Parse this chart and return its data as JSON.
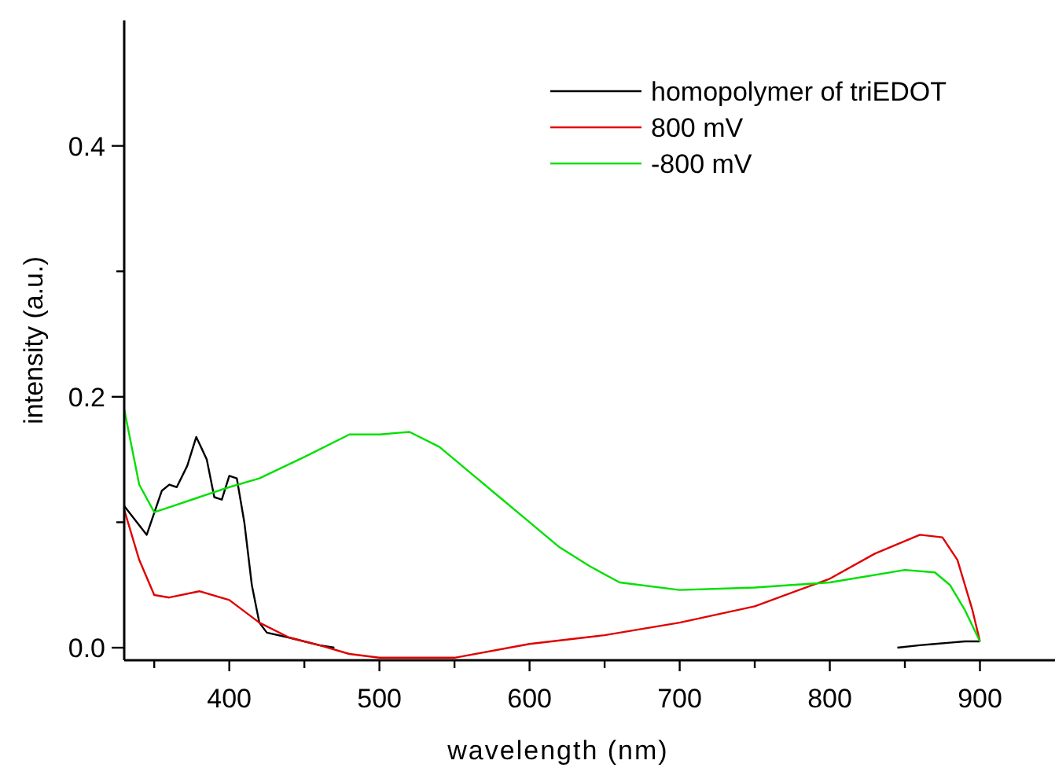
{
  "chart_data": {
    "type": "line",
    "xlabel": "wavelength (nm)",
    "ylabel": "intensity (a.u.)",
    "xlim": [
      330,
      950
    ],
    "ylim": [
      -0.01,
      0.5
    ],
    "xticks": [
      {
        "value": 350,
        "label": null
      },
      400,
      {
        "value": 450,
        "label": null
      },
      500,
      {
        "value": 550,
        "label": null
      },
      600,
      {
        "value": 650,
        "label": null
      },
      700,
      {
        "value": 750,
        "label": null
      },
      800,
      {
        "value": 850,
        "label": null
      },
      900
    ],
    "yticks": [
      {
        "value": 0,
        "label": "0.0"
      },
      {
        "value": 0.1,
        "label": null
      },
      0.2,
      {
        "value": 0.3,
        "label": null
      },
      0.4
    ],
    "legend": "top right",
    "grid": false,
    "line_style": "solid",
    "series": [
      {
        "name": "homopolymer of triEDOT",
        "color": "#000000",
        "x": [
          330,
          345,
          355,
          360,
          365,
          372,
          378,
          385,
          390,
          395,
          400,
          405,
          410,
          415,
          420,
          425,
          440,
          460,
          470,
          600,
          845,
          860,
          870,
          880,
          890,
          900
        ],
        "values": [
          0.113,
          0.09,
          0.125,
          0.13,
          0.128,
          0.145,
          0.168,
          0.15,
          0.12,
          0.118,
          0.137,
          0.135,
          0.1,
          0.05,
          0.02,
          0.012,
          0.008,
          0.002,
          0,
          null,
          0,
          0.002,
          0.003,
          0.004,
          0.005,
          0.005
        ]
      },
      {
        "name": "800 mV",
        "color": "#e00000",
        "x": [
          330,
          340,
          350,
          360,
          380,
          400,
          420,
          440,
          460,
          480,
          500,
          550,
          600,
          650,
          700,
          750,
          800,
          830,
          860,
          875,
          885,
          895,
          900
        ],
        "values": [
          0.11,
          0.07,
          0.042,
          0.04,
          0.045,
          0.038,
          0.02,
          0.008,
          0.002,
          -0.005,
          -0.008,
          -0.008,
          0.003,
          0.01,
          0.02,
          0.033,
          0.055,
          0.075,
          0.09,
          0.088,
          0.07,
          0.03,
          0.005
        ]
      },
      {
        "name": "-800 mV",
        "color": "#00e000",
        "x": [
          330,
          340,
          350,
          360,
          380,
          400,
          420,
          450,
          480,
          500,
          520,
          540,
          560,
          580,
          600,
          620,
          640,
          660,
          700,
          750,
          800,
          850,
          870,
          880,
          890,
          900
        ],
        "values": [
          0.19,
          0.13,
          0.108,
          0.112,
          0.12,
          0.128,
          0.135,
          0.152,
          0.17,
          0.17,
          0.172,
          0.16,
          0.14,
          0.12,
          0.1,
          0.08,
          0.065,
          0.052,
          0.046,
          0.048,
          0.052,
          0.062,
          0.06,
          0.05,
          0.03,
          0.005
        ]
      }
    ]
  }
}
